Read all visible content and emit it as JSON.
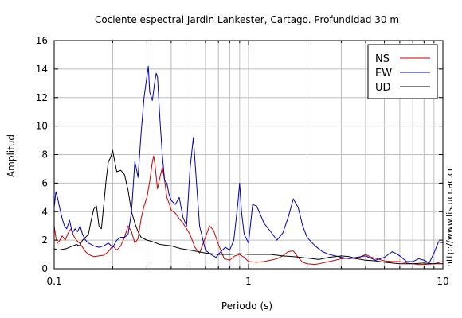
{
  "chart_data": {
    "type": "line",
    "title": "Cociente espectral Jardin Lankester, Cartago. Profundidad 30 m",
    "xlabel": "Periodo (s)",
    "ylabel": "Amplitud",
    "xscale": "log",
    "xlim": [
      0.1,
      10
    ],
    "ylim": [
      0,
      16
    ],
    "grid": true,
    "legend_position": "top-right",
    "x_ticks": [
      {
        "value": 0.1,
        "label": "0.1"
      },
      {
        "value": 1,
        "label": "1"
      },
      {
        "value": 10,
        "label": "10"
      }
    ],
    "y_ticks": [
      {
        "value": 0,
        "label": "0"
      },
      {
        "value": 2,
        "label": "2"
      },
      {
        "value": 4,
        "label": "4"
      },
      {
        "value": 6,
        "label": "6"
      },
      {
        "value": 8,
        "label": "8"
      },
      {
        "value": 10,
        "label": "10"
      },
      {
        "value": 12,
        "label": "12"
      },
      {
        "value": 14,
        "label": "14"
      },
      {
        "value": 16,
        "label": "16"
      }
    ],
    "side_note": "http://www.lis.ucr.ac.cr",
    "series": [
      {
        "name": "NS",
        "color": "#cc0000",
        "points": [
          [
            0.1,
            3.0
          ],
          [
            0.102,
            2.2
          ],
          [
            0.104,
            1.8
          ],
          [
            0.107,
            2.0
          ],
          [
            0.11,
            2.3
          ],
          [
            0.114,
            2.0
          ],
          [
            0.118,
            2.5
          ],
          [
            0.122,
            2.8
          ],
          [
            0.126,
            2.3
          ],
          [
            0.13,
            2.0
          ],
          [
            0.135,
            1.8
          ],
          [
            0.14,
            1.5
          ],
          [
            0.145,
            1.2
          ],
          [
            0.15,
            1.0
          ],
          [
            0.16,
            0.85
          ],
          [
            0.17,
            0.9
          ],
          [
            0.18,
            0.95
          ],
          [
            0.19,
            1.2
          ],
          [
            0.2,
            1.6
          ],
          [
            0.21,
            1.3
          ],
          [
            0.22,
            1.6
          ],
          [
            0.23,
            2.2
          ],
          [
            0.24,
            3.0
          ],
          [
            0.25,
            2.6
          ],
          [
            0.26,
            1.8
          ],
          [
            0.27,
            2.1
          ],
          [
            0.28,
            3.5
          ],
          [
            0.29,
            4.4
          ],
          [
            0.3,
            5.0
          ],
          [
            0.31,
            6.1
          ],
          [
            0.32,
            7.5
          ],
          [
            0.325,
            7.9
          ],
          [
            0.33,
            7.3
          ],
          [
            0.34,
            5.6
          ],
          [
            0.35,
            6.4
          ],
          [
            0.36,
            7.1
          ],
          [
            0.37,
            6.2
          ],
          [
            0.38,
            5.0
          ],
          [
            0.39,
            4.6
          ],
          [
            0.4,
            4.1
          ],
          [
            0.42,
            3.9
          ],
          [
            0.44,
            3.5
          ],
          [
            0.46,
            3.2
          ],
          [
            0.48,
            2.8
          ],
          [
            0.5,
            2.4
          ],
          [
            0.53,
            1.5
          ],
          [
            0.56,
            1.1
          ],
          [
            0.6,
            2.2
          ],
          [
            0.63,
            3.0
          ],
          [
            0.66,
            2.7
          ],
          [
            0.7,
            1.7
          ],
          [
            0.75,
            0.7
          ],
          [
            0.8,
            0.6
          ],
          [
            0.85,
            0.9
          ],
          [
            0.9,
            1.0
          ],
          [
            0.95,
            0.8
          ],
          [
            1.0,
            0.5
          ],
          [
            1.1,
            0.45
          ],
          [
            1.2,
            0.5
          ],
          [
            1.3,
            0.6
          ],
          [
            1.4,
            0.7
          ],
          [
            1.5,
            0.9
          ],
          [
            1.6,
            1.2
          ],
          [
            1.7,
            1.25
          ],
          [
            1.8,
            0.8
          ],
          [
            1.9,
            0.45
          ],
          [
            2.0,
            0.35
          ],
          [
            2.2,
            0.3
          ],
          [
            2.4,
            0.4
          ],
          [
            2.6,
            0.5
          ],
          [
            2.8,
            0.6
          ],
          [
            3.0,
            0.7
          ],
          [
            3.3,
            0.75
          ],
          [
            3.6,
            0.7
          ],
          [
            4.0,
            1.0
          ],
          [
            4.3,
            0.8
          ],
          [
            4.6,
            0.7
          ],
          [
            5.0,
            0.55
          ],
          [
            5.5,
            0.5
          ],
          [
            6.0,
            0.5
          ],
          [
            6.5,
            0.4
          ],
          [
            7.0,
            0.35
          ],
          [
            7.5,
            0.3
          ],
          [
            8.0,
            0.3
          ],
          [
            9.0,
            0.35
          ],
          [
            10.0,
            0.5
          ]
        ]
      },
      {
        "name": "EW",
        "color": "#0000bb",
        "points": [
          [
            0.1,
            4.3
          ],
          [
            0.102,
            5.4
          ],
          [
            0.104,
            5.0
          ],
          [
            0.107,
            4.2
          ],
          [
            0.11,
            3.5
          ],
          [
            0.113,
            3.0
          ],
          [
            0.116,
            2.8
          ],
          [
            0.12,
            3.4
          ],
          [
            0.124,
            2.5
          ],
          [
            0.128,
            2.8
          ],
          [
            0.132,
            2.6
          ],
          [
            0.136,
            3.0
          ],
          [
            0.14,
            2.4
          ],
          [
            0.145,
            2.0
          ],
          [
            0.15,
            1.8
          ],
          [
            0.16,
            1.6
          ],
          [
            0.17,
            1.5
          ],
          [
            0.18,
            1.6
          ],
          [
            0.19,
            1.8
          ],
          [
            0.2,
            1.5
          ],
          [
            0.21,
            2.0
          ],
          [
            0.22,
            2.2
          ],
          [
            0.23,
            2.2
          ],
          [
            0.24,
            2.4
          ],
          [
            0.25,
            4.0
          ],
          [
            0.26,
            7.5
          ],
          [
            0.265,
            7.0
          ],
          [
            0.27,
            6.4
          ],
          [
            0.28,
            9.5
          ],
          [
            0.29,
            12.0
          ],
          [
            0.3,
            13.5
          ],
          [
            0.305,
            14.2
          ],
          [
            0.31,
            12.4
          ],
          [
            0.32,
            11.8
          ],
          [
            0.33,
            13.2
          ],
          [
            0.335,
            13.7
          ],
          [
            0.34,
            13.5
          ],
          [
            0.35,
            10.5
          ],
          [
            0.36,
            8.0
          ],
          [
            0.37,
            6.2
          ],
          [
            0.38,
            6.0
          ],
          [
            0.39,
            5.2
          ],
          [
            0.4,
            4.8
          ],
          [
            0.42,
            4.5
          ],
          [
            0.44,
            5.0
          ],
          [
            0.46,
            3.6
          ],
          [
            0.48,
            3.0
          ],
          [
            0.5,
            7.0
          ],
          [
            0.52,
            9.2
          ],
          [
            0.54,
            6.0
          ],
          [
            0.56,
            3.0
          ],
          [
            0.6,
            1.3
          ],
          [
            0.64,
            1.0
          ],
          [
            0.68,
            0.8
          ],
          [
            0.72,
            1.2
          ],
          [
            0.76,
            1.5
          ],
          [
            0.8,
            1.3
          ],
          [
            0.84,
            2.0
          ],
          [
            0.88,
            4.5
          ],
          [
            0.9,
            6.0
          ],
          [
            0.92,
            4.0
          ],
          [
            0.95,
            2.4
          ],
          [
            1.0,
            1.8
          ],
          [
            1.05,
            4.5
          ],
          [
            1.1,
            4.4
          ],
          [
            1.15,
            3.8
          ],
          [
            1.2,
            3.2
          ],
          [
            1.3,
            2.6
          ],
          [
            1.4,
            2.0
          ],
          [
            1.5,
            2.5
          ],
          [
            1.6,
            3.6
          ],
          [
            1.7,
            4.9
          ],
          [
            1.8,
            4.3
          ],
          [
            1.9,
            3.0
          ],
          [
            2.0,
            2.2
          ],
          [
            2.2,
            1.6
          ],
          [
            2.4,
            1.2
          ],
          [
            2.6,
            1.0
          ],
          [
            2.8,
            0.9
          ],
          [
            3.0,
            0.8
          ],
          [
            3.3,
            0.7
          ],
          [
            3.6,
            0.8
          ],
          [
            4.0,
            0.9
          ],
          [
            4.5,
            0.6
          ],
          [
            5.0,
            0.8
          ],
          [
            5.5,
            1.2
          ],
          [
            6.0,
            0.9
          ],
          [
            6.5,
            0.5
          ],
          [
            7.0,
            0.5
          ],
          [
            7.5,
            0.7
          ],
          [
            8.0,
            0.6
          ],
          [
            8.5,
            0.4
          ],
          [
            9.0,
            1.1
          ],
          [
            9.5,
            1.9
          ],
          [
            10.0,
            1.8
          ]
        ]
      },
      {
        "name": "UD",
        "color": "#000000",
        "points": [
          [
            0.1,
            1.4
          ],
          [
            0.105,
            1.3
          ],
          [
            0.11,
            1.35
          ],
          [
            0.115,
            1.4
          ],
          [
            0.12,
            1.5
          ],
          [
            0.125,
            1.6
          ],
          [
            0.13,
            1.7
          ],
          [
            0.135,
            1.6
          ],
          [
            0.14,
            2.0
          ],
          [
            0.145,
            2.2
          ],
          [
            0.15,
            2.4
          ],
          [
            0.155,
            3.4
          ],
          [
            0.16,
            4.2
          ],
          [
            0.165,
            4.4
          ],
          [
            0.17,
            3.0
          ],
          [
            0.175,
            2.8
          ],
          [
            0.18,
            4.5
          ],
          [
            0.185,
            6.2
          ],
          [
            0.19,
            7.5
          ],
          [
            0.195,
            7.8
          ],
          [
            0.2,
            8.3
          ],
          [
            0.205,
            7.5
          ],
          [
            0.21,
            6.8
          ],
          [
            0.22,
            6.9
          ],
          [
            0.23,
            6.6
          ],
          [
            0.24,
            5.5
          ],
          [
            0.25,
            4.0
          ],
          [
            0.26,
            3.2
          ],
          [
            0.27,
            2.6
          ],
          [
            0.28,
            2.2
          ],
          [
            0.3,
            2.0
          ],
          [
            0.32,
            1.9
          ],
          [
            0.35,
            1.7
          ],
          [
            0.4,
            1.6
          ],
          [
            0.45,
            1.4
          ],
          [
            0.5,
            1.3
          ],
          [
            0.55,
            1.2
          ],
          [
            0.6,
            1.1
          ],
          [
            0.7,
            1.0
          ],
          [
            0.8,
            1.0
          ],
          [
            0.9,
            1.05
          ],
          [
            1.0,
            1.0
          ],
          [
            1.1,
            1.0
          ],
          [
            1.2,
            1.0
          ],
          [
            1.3,
            1.0
          ],
          [
            1.4,
            0.95
          ],
          [
            1.5,
            0.9
          ],
          [
            1.7,
            0.85
          ],
          [
            2.0,
            0.75
          ],
          [
            2.3,
            0.65
          ],
          [
            2.6,
            0.8
          ],
          [
            3.0,
            0.9
          ],
          [
            3.3,
            0.85
          ],
          [
            3.6,
            0.7
          ],
          [
            4.0,
            0.6
          ],
          [
            4.5,
            0.55
          ],
          [
            5.0,
            0.45
          ],
          [
            5.5,
            0.4
          ],
          [
            6.0,
            0.35
          ],
          [
            7.0,
            0.35
          ],
          [
            8.0,
            0.4
          ],
          [
            9.0,
            0.35
          ],
          [
            10.0,
            0.35
          ]
        ]
      }
    ]
  }
}
